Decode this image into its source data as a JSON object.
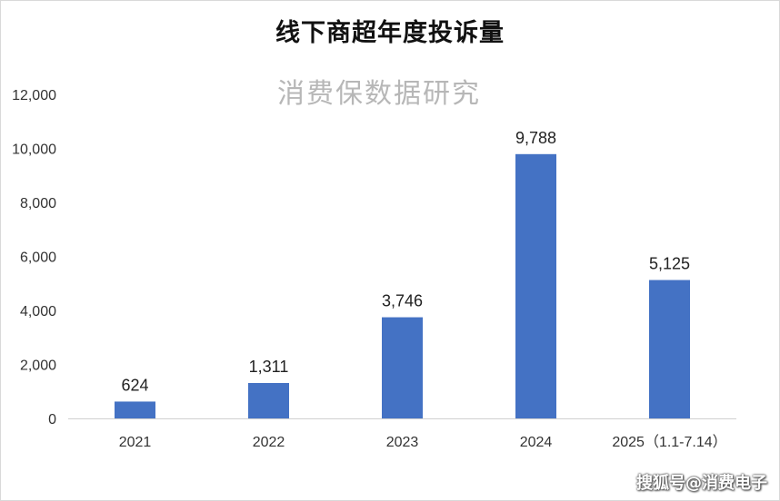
{
  "chart_data": {
    "type": "bar",
    "title": "线下商超年度投诉量",
    "subtitle": "消费保数据研究",
    "categories": [
      "2021",
      "2022",
      "2023",
      "2024",
      "2025（1.1-7.14）"
    ],
    "values": [
      624,
      1311,
      3746,
      9788,
      5125
    ],
    "value_labels": [
      "624",
      "1,311",
      "3,746",
      "9,788",
      "5,125"
    ],
    "yticks": [
      0,
      2000,
      4000,
      6000,
      8000,
      10000,
      12000
    ],
    "ytick_labels": [
      "0",
      "2,000",
      "4,000",
      "6,000",
      "8,000",
      "10,000",
      "12,000"
    ],
    "ylim": [
      0,
      12000
    ],
    "xlabel": "",
    "ylabel": "",
    "grid": false,
    "legend": "none",
    "bar_color": "#4472c4"
  },
  "watermark": "搜狐号@消费电子"
}
